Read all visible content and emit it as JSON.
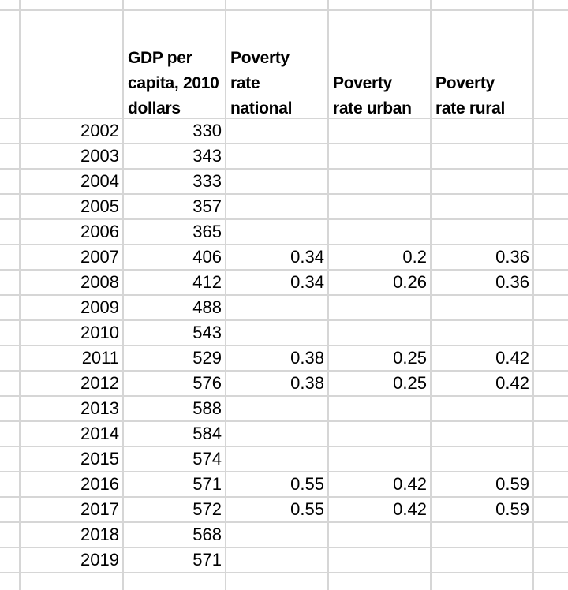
{
  "sheet": {
    "grid": {
      "gridline_color": "#d6d6d6",
      "background_color": "#ffffff",
      "text_color": "#000000"
    },
    "columns": [
      {
        "id": "year",
        "header": "",
        "header_lines": []
      },
      {
        "id": "gdp",
        "header": "GDP per capita, 2010 dollars",
        "header_lines": [
          "GDP per",
          "capita, 2010",
          "dollars"
        ]
      },
      {
        "id": "poverty_national",
        "header": "Poverty rate national",
        "header_lines": [
          "Poverty",
          "rate",
          "national"
        ]
      },
      {
        "id": "poverty_urban",
        "header": "Poverty rate urban",
        "header_lines": [
          "Poverty",
          "rate urban"
        ]
      },
      {
        "id": "poverty_rural",
        "header": "Poverty rate rural",
        "header_lines": [
          "Poverty",
          "rate rural"
        ]
      }
    ],
    "rows": [
      {
        "year": "2002",
        "gdp": "330",
        "poverty_national": "",
        "poverty_urban": "",
        "poverty_rural": ""
      },
      {
        "year": "2003",
        "gdp": "343",
        "poverty_national": "",
        "poverty_urban": "",
        "poverty_rural": ""
      },
      {
        "year": "2004",
        "gdp": "333",
        "poverty_national": "",
        "poverty_urban": "",
        "poverty_rural": ""
      },
      {
        "year": "2005",
        "gdp": "357",
        "poverty_national": "",
        "poverty_urban": "",
        "poverty_rural": ""
      },
      {
        "year": "2006",
        "gdp": "365",
        "poverty_national": "",
        "poverty_urban": "",
        "poverty_rural": ""
      },
      {
        "year": "2007",
        "gdp": "406",
        "poverty_national": "0.34",
        "poverty_urban": "0.2",
        "poverty_rural": "0.36"
      },
      {
        "year": "2008",
        "gdp": "412",
        "poverty_national": "0.34",
        "poverty_urban": "0.26",
        "poverty_rural": "0.36"
      },
      {
        "year": "2009",
        "gdp": "488",
        "poverty_national": "",
        "poverty_urban": "",
        "poverty_rural": ""
      },
      {
        "year": "2010",
        "gdp": "543",
        "poverty_national": "",
        "poverty_urban": "",
        "poverty_rural": ""
      },
      {
        "year": "2011",
        "gdp": "529",
        "poverty_national": "0.38",
        "poverty_urban": "0.25",
        "poverty_rural": "0.42"
      },
      {
        "year": "2012",
        "gdp": "576",
        "poverty_national": "0.38",
        "poverty_urban": "0.25",
        "poverty_rural": "0.42"
      },
      {
        "year": "2013",
        "gdp": "588",
        "poverty_national": "",
        "poverty_urban": "",
        "poverty_rural": ""
      },
      {
        "year": "2014",
        "gdp": "584",
        "poverty_national": "",
        "poverty_urban": "",
        "poverty_rural": ""
      },
      {
        "year": "2015",
        "gdp": "574",
        "poverty_national": "",
        "poverty_urban": "",
        "poverty_rural": ""
      },
      {
        "year": "2016",
        "gdp": "571",
        "poverty_national": "0.55",
        "poverty_urban": "0.42",
        "poverty_rural": "0.59"
      },
      {
        "year": "2017",
        "gdp": "572",
        "poverty_national": "0.55",
        "poverty_urban": "0.42",
        "poverty_rural": "0.59"
      },
      {
        "year": "2018",
        "gdp": "568",
        "poverty_national": "",
        "poverty_urban": "",
        "poverty_rural": ""
      },
      {
        "year": "2019",
        "gdp": "571",
        "poverty_national": "",
        "poverty_urban": "",
        "poverty_rural": ""
      }
    ]
  }
}
